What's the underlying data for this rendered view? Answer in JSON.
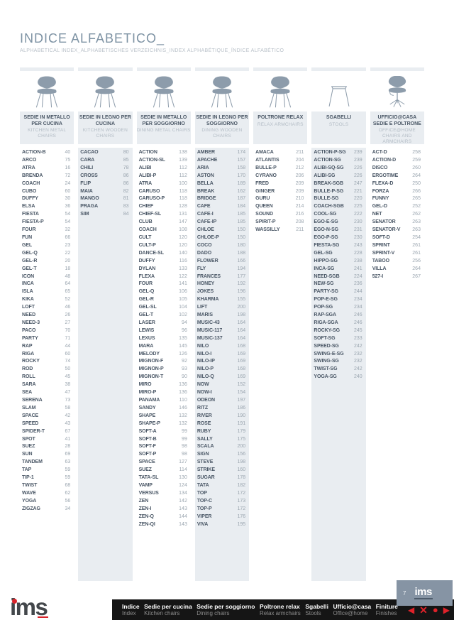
{
  "page": {
    "title": "INDICE ALFABETICO_",
    "subtitle": "ALPHABETICAL INDEX_ALPHABETISCHES VERZEICHNIS_INDEX ALPHABÉTIQUE_ÍNDICE ALFABÉTICO",
    "page_number": "7"
  },
  "colors": {
    "accent_red": "#d9232a",
    "steel_blue": "#8d9cab",
    "stripe_grey": "#e9edf1",
    "text_dark": "#4a5766",
    "text_muted": "#9aa5af",
    "footer_bg": "#151515",
    "tab_bg": "#8694a4"
  },
  "columns": [
    {
      "id": "kitchen-metal-chairs",
      "icon": "side-chair-icon",
      "title_it": "SEDIE IN METALLO PER CUCINA",
      "title_en": "KITCHEN METAL CHAIRS",
      "items": [
        [
          "ACTION-B",
          40
        ],
        [
          "ARCO",
          75
        ],
        [
          "ATRA",
          16
        ],
        [
          "BRENDA",
          72
        ],
        [
          "COACH",
          24
        ],
        [
          "CUBO",
          60
        ],
        [
          "DUFFY",
          30
        ],
        [
          "ELSA",
          36
        ],
        [
          "FIESTA",
          54
        ],
        [
          "FIESTA-P",
          54
        ],
        [
          "FOUR",
          32
        ],
        [
          "FUN",
          66
        ],
        [
          "GEL",
          23
        ],
        [
          "GEL-Q",
          22
        ],
        [
          "GEL-R",
          20
        ],
        [
          "GEL-T",
          18
        ],
        [
          "ICON",
          48
        ],
        [
          "INCA",
          64
        ],
        [
          "ISLA",
          65
        ],
        [
          "KIKA",
          52
        ],
        [
          "LOFT",
          46
        ],
        [
          "NEED",
          26
        ],
        [
          "NEED-3",
          27
        ],
        [
          "PACO",
          70
        ],
        [
          "PARTY",
          71
        ],
        [
          "RAP",
          44
        ],
        [
          "RIGA",
          60
        ],
        [
          "ROCKY",
          74
        ],
        [
          "ROD",
          50
        ],
        [
          "ROLL",
          45
        ],
        [
          "SARA",
          38
        ],
        [
          "SEA",
          47
        ],
        [
          "SERENA",
          73
        ],
        [
          "SLAM",
          58
        ],
        [
          "SPACE",
          42
        ],
        [
          "SPEED",
          43
        ],
        [
          "SPIDER-T",
          67
        ],
        [
          "SPOT",
          41
        ],
        [
          "SUEZ",
          28
        ],
        [
          "SUN",
          69
        ],
        [
          "TANDEM",
          63
        ],
        [
          "TAP",
          59
        ],
        [
          "TIP-1",
          59
        ],
        [
          "TWIST",
          68
        ],
        [
          "WAVE",
          62
        ],
        [
          "YOGA",
          56
        ],
        [
          "ZIGZAG",
          34
        ]
      ]
    },
    {
      "id": "kitchen-wooden-chairs",
      "icon": "side-chair-icon",
      "title_it": "SEDIE IN LEGNO PER CUCINA",
      "title_en": "KITCHEN WOODEN CHAIRS",
      "items": [
        [
          "CACAO",
          80
        ],
        [
          "CARA",
          85
        ],
        [
          "CHILI",
          78
        ],
        [
          "CROSS",
          86
        ],
        [
          "FLIP",
          86
        ],
        [
          "MAIA",
          82
        ],
        [
          "MANGO",
          81
        ],
        [
          "PRAGA",
          83
        ],
        [
          "SIM",
          84
        ]
      ]
    },
    {
      "id": "dining-metal-chairs",
      "icon": "side-chair-icon",
      "title_it": "SEDIE IN METALLO PER SOGGIORNO",
      "title_en": "DINING METAL CHAIRS",
      "items": [
        [
          "ACTION",
          138
        ],
        [
          "ACTION-SL",
          139
        ],
        [
          "ALIBI",
          112
        ],
        [
          "ALIBI-P",
          112
        ],
        [
          "ATRA",
          100
        ],
        [
          "CARUSO",
          118
        ],
        [
          "CARUSO-P",
          118
        ],
        [
          "CHIEF",
          128
        ],
        [
          "CHIEF-SL",
          131
        ],
        [
          "CLUB",
          147
        ],
        [
          "COACH",
          108
        ],
        [
          "CULT",
          120
        ],
        [
          "CULT-P",
          120
        ],
        [
          "DANCE-SL",
          140
        ],
        [
          "DUFFY",
          116
        ],
        [
          "DYLAN",
          133
        ],
        [
          "FLEXA",
          122
        ],
        [
          "FOUR",
          141
        ],
        [
          "GEL-Q",
          106
        ],
        [
          "GEL-R",
          105
        ],
        [
          "GEL-SL",
          104
        ],
        [
          "GEL-T",
          102
        ],
        [
          "LASER",
          94
        ],
        [
          "LEWIS",
          96
        ],
        [
          "LEXUS",
          135
        ],
        [
          "MARA",
          145
        ],
        [
          "MELODY",
          126
        ],
        [
          "MIGNON-F",
          92
        ],
        [
          "MIGNON-P",
          93
        ],
        [
          "MIGNON-T",
          90
        ],
        [
          "MIRO",
          136
        ],
        [
          "MIRO-P",
          136
        ],
        [
          "PANAMA",
          110
        ],
        [
          "SANDY",
          146
        ],
        [
          "SHAPE",
          132
        ],
        [
          "SHAPE-P",
          132
        ],
        [
          "SOFT-A",
          99
        ],
        [
          "SOFT-B",
          99
        ],
        [
          "SOFT-F",
          98
        ],
        [
          "SOFT-P",
          98
        ],
        [
          "SPACE",
          127
        ],
        [
          "SUEZ",
          114
        ],
        [
          "TATA-SL",
          130
        ],
        [
          "VAMP",
          124
        ],
        [
          "VERSUS",
          134
        ],
        [
          "ZEN",
          142
        ],
        [
          "ZEN-I",
          143
        ],
        [
          "ZEN-Q",
          144
        ],
        [
          "ZEN-QI",
          143
        ]
      ]
    },
    {
      "id": "dining-wooden-chairs",
      "icon": "side-chair-icon",
      "title_it": "SEDIE IN LEGNO PER SOGGIORNO",
      "title_en": "DINING WOODEN CHAIRS",
      "items": [
        [
          "AMBER",
          174
        ],
        [
          "APACHE",
          157
        ],
        [
          "ARIA",
          158
        ],
        [
          "ASTON",
          170
        ],
        [
          "BELLA",
          189
        ],
        [
          "BREAK",
          162
        ],
        [
          "BRIDGE",
          187
        ],
        [
          "CAFE",
          184
        ],
        [
          "CAFE-I",
          185
        ],
        [
          "CAFE-IP",
          185
        ],
        [
          "CHLOE",
          150
        ],
        [
          "CHLOE-P",
          150
        ],
        [
          "COCO",
          180
        ],
        [
          "DADO",
          188
        ],
        [
          "FLOWER",
          166
        ],
        [
          "FLY",
          194
        ],
        [
          "FRANCES",
          177
        ],
        [
          "HONEY",
          192
        ],
        [
          "JOKES",
          196
        ],
        [
          "KHARMA",
          155
        ],
        [
          "LIFT",
          200
        ],
        [
          "MARIS",
          198
        ],
        [
          "MUSIC-43",
          164
        ],
        [
          "MUSIC-117",
          164
        ],
        [
          "MUSIC-137",
          164
        ],
        [
          "NILO",
          168
        ],
        [
          "NILO-I",
          169
        ],
        [
          "NILO-IP",
          169
        ],
        [
          "NILO-P",
          168
        ],
        [
          "NILO-Q",
          169
        ],
        [
          "NOW",
          152
        ],
        [
          "NOW-I",
          154
        ],
        [
          "ODEON",
          197
        ],
        [
          "RITZ",
          186
        ],
        [
          "RIVER",
          190
        ],
        [
          "ROSE",
          191
        ],
        [
          "RUBY",
          179
        ],
        [
          "SALLY",
          175
        ],
        [
          "SCALA",
          200
        ],
        [
          "SIGN",
          156
        ],
        [
          "STEVE",
          198
        ],
        [
          "STRIKE",
          160
        ],
        [
          "SUGAR",
          178
        ],
        [
          "TATA",
          182
        ],
        [
          "TOP",
          172
        ],
        [
          "TOP-C",
          173
        ],
        [
          "TOP-P",
          172
        ],
        [
          "VIPER",
          176
        ],
        [
          "VIVA",
          195
        ]
      ]
    },
    {
      "id": "relax-armchairs",
      "icon": "side-chair-icon",
      "title_it": "POLTRONE RELAX",
      "title_en": "RELAX ARMCHAIRS",
      "items": [
        [
          "AMACA",
          211
        ],
        [
          "ATLANTIS",
          204
        ],
        [
          "BULLE-P",
          212
        ],
        [
          "CYRANO",
          206
        ],
        [
          "FRED",
          209
        ],
        [
          "GINGER",
          209
        ],
        [
          "GURU",
          210
        ],
        [
          "QUEEN",
          214
        ],
        [
          "SOUND",
          216
        ],
        [
          "SPIRIT-P",
          208
        ],
        [
          "WASSILLY",
          211
        ]
      ]
    },
    {
      "id": "stools",
      "icon": "stool-icon",
      "title_it": "SGABELLI",
      "title_en": "STOOLS",
      "items": [
        [
          "ACTION-P-SG",
          239
        ],
        [
          "ACTION-SG",
          239
        ],
        [
          "ALIBI-SQ-SG",
          226
        ],
        [
          "ALIBI-SG",
          226
        ],
        [
          "BREAK-SGB",
          247
        ],
        [
          "BULLE-P-SG",
          221
        ],
        [
          "BULLE-SG",
          220
        ],
        [
          "COACH-SGB",
          225
        ],
        [
          "COOL-SG",
          222
        ],
        [
          "EGO-E-SG",
          230
        ],
        [
          "EGO-N-SG",
          231
        ],
        [
          "EGO-P-SG",
          230
        ],
        [
          "FIESTA-SG",
          243
        ],
        [
          "GEL-SG",
          228
        ],
        [
          "HIPPO-SG",
          238
        ],
        [
          "INCA-SG",
          241
        ],
        [
          "NEED-SGB",
          224
        ],
        [
          "NEW-SG",
          236
        ],
        [
          "PARTY-SG",
          244
        ],
        [
          "POP-E-SG",
          234
        ],
        [
          "POP-SG",
          234
        ],
        [
          "RAP-SGA",
          246
        ],
        [
          "RIGA-SGA",
          246
        ],
        [
          "ROCKY-SG",
          245
        ],
        [
          "SOFT-SG",
          233
        ],
        [
          "SPEED-SG",
          242
        ],
        [
          "SWING-E-SG",
          232
        ],
        [
          "SWING-SG",
          232
        ],
        [
          "TWIST-SG",
          242
        ],
        [
          "YOGA-SG",
          240
        ]
      ]
    },
    {
      "id": "office-home",
      "icon": "office-chair-icon",
      "title_it": "UFFICIO@CASA SEDIE E POLTRONE",
      "title_en": "OFFICE@HOME CHAIRS AND ARMCHAIRS",
      "items": [
        [
          "ACT-D",
          258
        ],
        [
          "ACTION-D",
          259
        ],
        [
          "DISCO",
          260
        ],
        [
          "ERGOTIME",
          264
        ],
        [
          "FLEXA-D",
          250
        ],
        [
          "FORZA",
          266
        ],
        [
          "FUNNY",
          265
        ],
        [
          "GEL-D",
          252
        ],
        [
          "NET",
          262
        ],
        [
          "SENATOR",
          263
        ],
        [
          "SENATOR-V",
          263
        ],
        [
          "SOFT-D",
          254
        ],
        [
          "SPRINT",
          261
        ],
        [
          "SPRINT-V",
          261
        ],
        [
          "TABOO",
          256
        ],
        [
          "VILLA",
          264
        ],
        [
          "527-I",
          267
        ]
      ]
    }
  ],
  "footer": {
    "brand_logo": "ims",
    "page_tab": {
      "number": "7",
      "logo": "ims"
    },
    "menu": [
      {
        "label": "Indice",
        "sublabel": "Index"
      },
      {
        "label": "Sedie per cucina",
        "sublabel": "Kitchen chairs"
      },
      {
        "label": "Sedie per soggiorno",
        "sublabel": "Dining chairs"
      },
      {
        "label": "Poltrone relax",
        "sublabel": "Relax armchairs"
      },
      {
        "label": "Sgabelli",
        "sublabel": "Stools"
      },
      {
        "label": "Ufficio@casa",
        "sublabel": "Office@home"
      },
      {
        "label": "Finiture",
        "sublabel": "Finishes"
      }
    ],
    "nav_icons": [
      {
        "name": "prev-page-icon",
        "glyph": "◀",
        "cls": ""
      },
      {
        "name": "close-icon",
        "glyph": "✕",
        "cls": "x-ico"
      },
      {
        "name": "record-dot-icon",
        "glyph": "●",
        "cls": "o-ico"
      },
      {
        "name": "next-page-icon",
        "glyph": "▶",
        "cls": ""
      }
    ]
  }
}
